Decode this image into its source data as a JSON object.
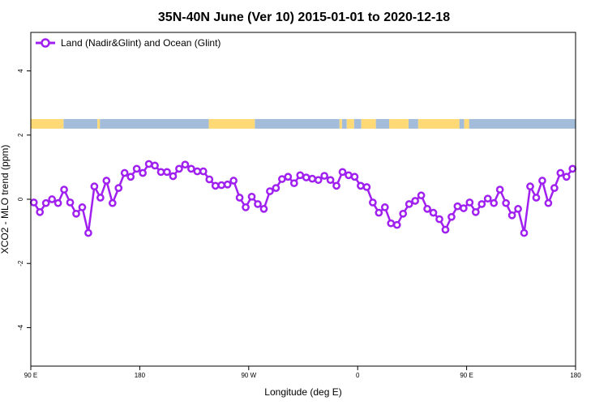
{
  "chart_data": {
    "type": "line",
    "title": "35N-40N June (Ver 10)   2015-01-01 to 2020-12-18",
    "xlabel": "Longitude (deg E)",
    "ylabel": "XCO2 - MLO trend (ppm)",
    "xlim": [
      90,
      540
    ],
    "ylim": [
      -5.2,
      5.2
    ],
    "x_ticks": [
      {
        "value": 90,
        "label": "90 E"
      },
      {
        "value": 180,
        "label": "180"
      },
      {
        "value": 270,
        "label": "90 W"
      },
      {
        "value": 360,
        "label": "0"
      },
      {
        "value": 450,
        "label": "90 E"
      },
      {
        "value": 540,
        "label": "180"
      }
    ],
    "y_ticks": [
      {
        "value": -4,
        "label": "-4"
      },
      {
        "value": -2,
        "label": "-2"
      },
      {
        "value": 0,
        "label": "0"
      },
      {
        "value": 2,
        "label": "2"
      },
      {
        "value": 4,
        "label": "4"
      }
    ],
    "legend": {
      "position": "top-left"
    },
    "series": [
      {
        "name": "Land (Nadir&Glint) and Ocean (Glint)",
        "color": "#a020f0",
        "x": [
          92.5,
          97.5,
          102.5,
          107.5,
          112.5,
          117.5,
          122.5,
          127.5,
          132.5,
          137.5,
          142.5,
          147.5,
          152.5,
          157.5,
          162.5,
          167.5,
          172.5,
          177.5,
          182.5,
          187.5,
          192.5,
          197.5,
          202.5,
          207.5,
          212.5,
          217.5,
          222.5,
          227.5,
          232.5,
          237.5,
          242.5,
          247.5,
          252.5,
          257.5,
          262.5,
          267.5,
          272.5,
          277.5,
          282.5,
          287.5,
          292.5,
          297.5,
          302.5,
          307.5,
          312.5,
          317.5,
          322.5,
          327.5,
          332.5,
          337.5,
          342.5,
          347.5,
          352.5,
          357.5,
          362.5,
          367.5,
          372.5,
          377.5,
          382.5,
          387.5,
          392.5,
          397.5,
          402.5,
          407.5,
          412.5,
          417.5,
          422.5,
          427.5,
          432.5,
          437.5,
          442.5,
          447.5,
          452.5,
          457.5,
          462.5,
          467.5,
          472.5,
          477.5,
          482.5,
          487.5,
          492.5,
          497.5,
          502.5,
          507.5,
          512.5,
          517.5,
          522.5,
          527.5,
          532.5,
          537.5
        ],
        "values": [
          -0.1,
          -0.4,
          -0.12,
          0,
          -0.12,
          0.3,
          -0.1,
          -0.45,
          -0.25,
          -1.05,
          0.4,
          0.05,
          0.58,
          -0.12,
          0.35,
          0.82,
          0.7,
          0.95,
          0.82,
          1.1,
          1.05,
          0.85,
          0.85,
          0.72,
          0.95,
          1.08,
          0.95,
          0.87,
          0.87,
          0.62,
          0.42,
          0.44,
          0.46,
          0.58,
          0.05,
          -0.25,
          0.08,
          -0.15,
          -0.3,
          0.25,
          0.35,
          0.63,
          0.7,
          0.5,
          0.75,
          0.68,
          0.64,
          0.6,
          0.73,
          0.6,
          0.42,
          0.85,
          0.75,
          0.7,
          0.42,
          0.38,
          -0.1,
          -0.42,
          -0.25,
          -0.75,
          -0.8,
          -0.45,
          -0.15,
          -0.05,
          0.12,
          -0.3,
          -0.42,
          -0.62,
          -0.95,
          -0.55,
          -0.22,
          -0.28,
          -0.1,
          -0.4,
          -0.15,
          0.02,
          -0.12,
          0.3,
          -0.12,
          -0.5,
          -0.3,
          -1.05,
          0.4,
          0.05,
          0.58,
          -0.12,
          0.35,
          0.82,
          0.7,
          0.95
        ]
      }
    ],
    "land_ocean_band": {
      "y_range": [
        2.2,
        2.5
      ],
      "ocean_color": "#a3bcd9",
      "land_color": "#ffd976",
      "land_ranges": [
        [
          90,
          117
        ],
        [
          145,
          147
        ],
        [
          237,
          275
        ],
        [
          345,
          347
        ],
        [
          351,
          357
        ],
        [
          363,
          375
        ],
        [
          386,
          402
        ],
        [
          410,
          444
        ],
        [
          448,
          452
        ]
      ],
      "ocean_ranges": [
        [
          117,
          145
        ],
        [
          147,
          237
        ],
        [
          275,
          345
        ],
        [
          347,
          351
        ],
        [
          357,
          363
        ],
        [
          375,
          386
        ],
        [
          402,
          410
        ],
        [
          444,
          448
        ],
        [
          452,
          540
        ]
      ]
    }
  }
}
